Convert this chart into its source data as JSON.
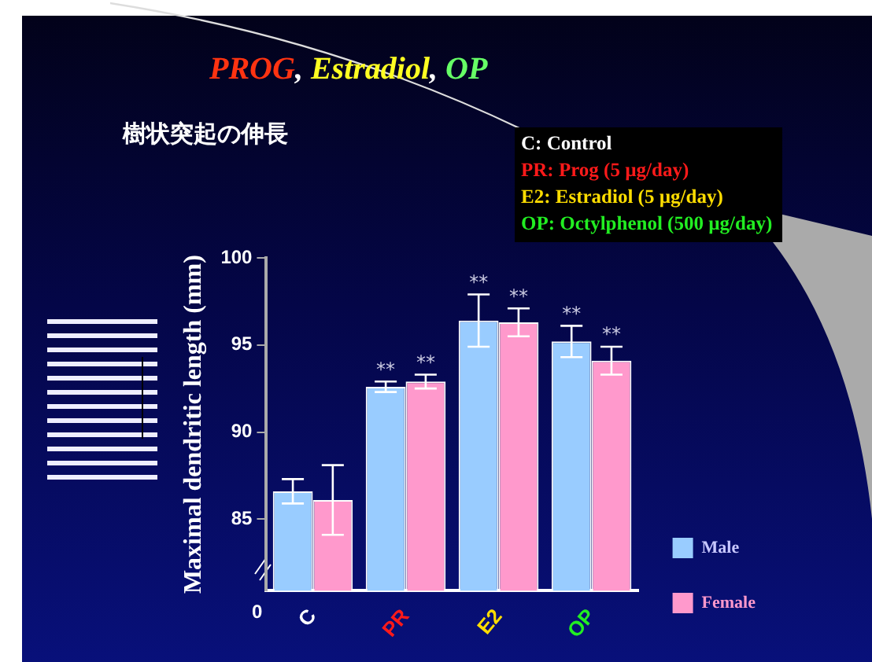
{
  "chart_data": {
    "type": "bar",
    "title": "PROG, Estradiol, OP",
    "subtitle": "樹状突起の伸長",
    "ylabel": "Maximal dendritic length (mm)",
    "categories": [
      "C",
      "PR",
      "E2",
      "OP"
    ],
    "series": [
      {
        "name": "Male",
        "color": "#99ccff",
        "values": [
          86.6,
          92.6,
          96.4,
          95.2
        ],
        "errors": [
          0.7,
          0.3,
          1.5,
          0.9
        ]
      },
      {
        "name": "Female",
        "color": "#ff99cc",
        "values": [
          86.1,
          92.9,
          96.3,
          94.1
        ],
        "errors": [
          2.0,
          0.4,
          0.8,
          0.8
        ]
      }
    ],
    "ylim": [
      80.9,
      100
    ],
    "yticks": [
      85,
      90,
      95,
      100
    ],
    "grid": false,
    "legend": "bottom right",
    "annotations": [
      "C: Control",
      "PR: Prog (5 µg/day)",
      "E2: Estradiol (5 µg/day)",
      "OP: Octylphenol (500 µg/day)",
      "0",
      {
        "text": "**",
        "x": "PR",
        "y": 92.6
      },
      {
        "text": "**",
        "x": "PR",
        "y": 92.9
      },
      {
        "text": "**",
        "x": "E2",
        "y": 96.4
      },
      {
        "text": "**",
        "x": "E2",
        "y": 96.3
      },
      {
        "text": "**",
        "x": "OP",
        "y": 95.2
      },
      {
        "text": "**",
        "x": "OP",
        "y": 94.1
      }
    ]
  }
}
